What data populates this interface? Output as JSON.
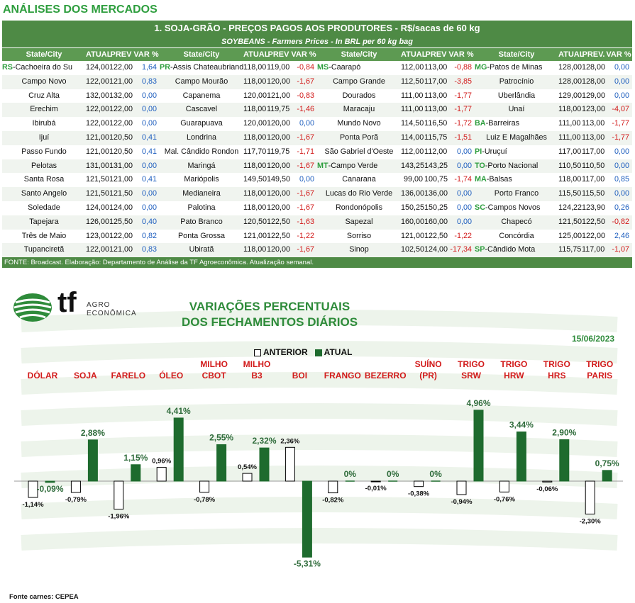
{
  "page_title": "ANÁLISES DOS MERCADOS",
  "table": {
    "title": "1. SOJA-GRÃO - PREÇOS PAGOS AOS PRODUTORES - R$/sacas de 60 kg",
    "subtitle": "SOYBEANS - Farmers Prices - In BRL per 60 kg bag",
    "groups": [
      {
        "headers": [
          "State/City",
          "ATUAL",
          "PREV",
          "VAR %"
        ],
        "rows": [
          {
            "state": "RS",
            "city": "Cachoeira do Su",
            "atual": "124,00",
            "prev": "122,00",
            "var": "1,64"
          },
          {
            "state": "",
            "city": "Campo Novo",
            "atual": "122,00",
            "prev": "121,00",
            "var": "0,83"
          },
          {
            "state": "",
            "city": "Cruz Alta",
            "atual": "132,00",
            "prev": "132,00",
            "var": "0,00"
          },
          {
            "state": "",
            "city": "Erechim",
            "atual": "122,00",
            "prev": "122,00",
            "var": "0,00"
          },
          {
            "state": "",
            "city": "Ibirubá",
            "atual": "122,00",
            "prev": "122,00",
            "var": "0,00"
          },
          {
            "state": "",
            "city": "Ijuí",
            "atual": "121,00",
            "prev": "120,50",
            "var": "0,41"
          },
          {
            "state": "",
            "city": "Passo Fundo",
            "atual": "121,00",
            "prev": "120,50",
            "var": "0,41"
          },
          {
            "state": "",
            "city": "Pelotas",
            "atual": "131,00",
            "prev": "131,00",
            "var": "0,00"
          },
          {
            "state": "",
            "city": "Santa Rosa",
            "atual": "121,50",
            "prev": "121,00",
            "var": "0,41"
          },
          {
            "state": "",
            "city": "Santo Angelo",
            "atual": "121,50",
            "prev": "121,50",
            "var": "0,00"
          },
          {
            "state": "",
            "city": "Soledade",
            "atual": "124,00",
            "prev": "124,00",
            "var": "0,00"
          },
          {
            "state": "",
            "city": "Tapejara",
            "atual": "126,00",
            "prev": "125,50",
            "var": "0,40"
          },
          {
            "state": "",
            "city": "Três de Maio",
            "atual": "123,00",
            "prev": "122,00",
            "var": "0,82"
          },
          {
            "state": "",
            "city": "Tupanciretã",
            "atual": "122,00",
            "prev": "121,00",
            "var": "0,83"
          }
        ]
      },
      {
        "headers": [
          "State/City",
          "ATUAL",
          "PREV",
          "VAR %"
        ],
        "rows": [
          {
            "state": "PR",
            "city": "Assis Chateaubriand",
            "atual": "118,00",
            "prev": "119,00",
            "var": "-0,84"
          },
          {
            "state": "",
            "city": "Campo Mourão",
            "atual": "118,00",
            "prev": "120,00",
            "var": "-1,67"
          },
          {
            "state": "",
            "city": "Capanema",
            "atual": "120,00",
            "prev": "121,00",
            "var": "-0,83"
          },
          {
            "state": "",
            "city": "Cascavel",
            "atual": "118,00",
            "prev": "119,75",
            "var": "-1,46"
          },
          {
            "state": "",
            "city": "Guarapuava",
            "atual": "120,00",
            "prev": "120,00",
            "var": "0,00"
          },
          {
            "state": "",
            "city": "Londrina",
            "atual": "118,00",
            "prev": "120,00",
            "var": "-1,67"
          },
          {
            "state": "",
            "city": "Mal. Cândido Rondon",
            "atual": "117,70",
            "prev": "119,75",
            "var": "-1,71"
          },
          {
            "state": "",
            "city": "Maringá",
            "atual": "118,00",
            "prev": "120,00",
            "var": "-1,67"
          },
          {
            "state": "",
            "city": "Mariópolis",
            "atual": "149,50",
            "prev": "149,50",
            "var": "0,00"
          },
          {
            "state": "",
            "city": "Medianeira",
            "atual": "118,00",
            "prev": "120,00",
            "var": "-1,67"
          },
          {
            "state": "",
            "city": "Palotina",
            "atual": "118,00",
            "prev": "120,00",
            "var": "-1,67"
          },
          {
            "state": "",
            "city": "Pato Branco",
            "atual": "120,50",
            "prev": "122,50",
            "var": "-1,63"
          },
          {
            "state": "",
            "city": "Ponta Grossa",
            "atual": "121,00",
            "prev": "122,50",
            "var": "-1,22"
          },
          {
            "state": "",
            "city": "Ubiratã",
            "atual": "118,00",
            "prev": "120,00",
            "var": "-1,67"
          }
        ]
      },
      {
        "headers": [
          "State/City",
          "ATUAL",
          "PREV",
          "VAR %"
        ],
        "rows": [
          {
            "state": "MS",
            "city": "Caarapó",
            "atual": "112,00",
            "prev": "113,00",
            "var": "-0,88"
          },
          {
            "state": "",
            "city": "Campo Grande",
            "atual": "112,50",
            "prev": "117,00",
            "var": "-3,85"
          },
          {
            "state": "",
            "city": "Dourados",
            "atual": "111,00",
            "prev": "113,00",
            "var": "-1,77"
          },
          {
            "state": "",
            "city": "Maracaju",
            "atual": "111,00",
            "prev": "113,00",
            "var": "-1,77"
          },
          {
            "state": "",
            "city": "Mundo Novo",
            "atual": "114,50",
            "prev": "116,50",
            "var": "-1,72"
          },
          {
            "state": "",
            "city": "Ponta Porã",
            "atual": "114,00",
            "prev": "115,75",
            "var": "-1,51"
          },
          {
            "state": "",
            "city": "São Gabriel d'Oeste",
            "atual": "112,00",
            "prev": "112,00",
            "var": "0,00"
          },
          {
            "state": "MT",
            "city": "Campo Verde",
            "atual": "143,25",
            "prev": "143,25",
            "var": "0,00"
          },
          {
            "state": "",
            "city": "Canarana",
            "atual": "99,00",
            "prev": "100,75",
            "var": "-1,74"
          },
          {
            "state": "",
            "city": "Lucas do Rio Verde",
            "atual": "136,00",
            "prev": "136,00",
            "var": "0,00"
          },
          {
            "state": "",
            "city": "Rondonópolis",
            "atual": "150,25",
            "prev": "150,25",
            "var": "0,00"
          },
          {
            "state": "",
            "city": "Sapezal",
            "atual": "160,00",
            "prev": "160,00",
            "var": "0,00"
          },
          {
            "state": "",
            "city": "Sorriso",
            "atual": "121,00",
            "prev": "122,50",
            "var": "-1,22"
          },
          {
            "state": "",
            "city": "Sinop",
            "atual": "102,50",
            "prev": "124,00",
            "var": "-17,34"
          }
        ]
      },
      {
        "headers": [
          "State/City",
          "ATUAL",
          "PREV.",
          "VAR %"
        ],
        "rows": [
          {
            "state": "MG",
            "city": "Patos de Minas",
            "atual": "128,00",
            "prev": "128,00",
            "var": "0,00"
          },
          {
            "state": "",
            "city": "Patrocínio",
            "atual": "128,00",
            "prev": "128,00",
            "var": "0,00"
          },
          {
            "state": "",
            "city": "Uberlândia",
            "atual": "129,00",
            "prev": "129,00",
            "var": "0,00"
          },
          {
            "state": "",
            "city": "Unaí",
            "atual": "118,00",
            "prev": "123,00",
            "var": "-4,07"
          },
          {
            "state": "BA",
            "city": "Barreiras",
            "atual": "111,00",
            "prev": "113,00",
            "var": "-1,77"
          },
          {
            "state": "",
            "city": "Luiz E Magalhães",
            "atual": "111,00",
            "prev": "113,00",
            "var": "-1,77"
          },
          {
            "state": "PI",
            "city": "Uruçuí",
            "atual": "117,00",
            "prev": "117,00",
            "var": "0,00"
          },
          {
            "state": "TO",
            "city": "Porto Nacional",
            "atual": "110,50",
            "prev": "110,50",
            "var": "0,00"
          },
          {
            "state": "MA",
            "city": "Balsas",
            "atual": "118,00",
            "prev": "117,00",
            "var": "0,85"
          },
          {
            "state": "",
            "city": "Porto Franco",
            "atual": "115,50",
            "prev": "115,50",
            "var": "0,00"
          },
          {
            "state": "SC",
            "city": "Campos Novos",
            "atual": "124,22",
            "prev": "123,90",
            "var": "0,26"
          },
          {
            "state": "",
            "city": "Chapecó",
            "atual": "121,50",
            "prev": "122,50",
            "var": "-0,82"
          },
          {
            "state": "",
            "city": "Concórdia",
            "atual": "125,00",
            "prev": "122,00",
            "var": "2,46"
          },
          {
            "state": "SP",
            "city": "Cândido Mota",
            "atual": "115,75",
            "prev": "117,00",
            "var": "-1,07"
          }
        ]
      }
    ],
    "source": "FONTE: Broadcast. Elaboração: Departamento de Análise da TF Agroeconômica. Atualização semanal."
  },
  "logo": {
    "mark": "tf",
    "word1": "AGRO",
    "word2": "ECONÔMICA"
  },
  "colors": {
    "green_dark": "#1e6b2e",
    "green_header": "#4e8a45",
    "title_green": "#2e8b3a",
    "label_red": "#d21b1b",
    "neg_red": "#d21b1b",
    "pos_blue": "#1f5fbf"
  },
  "chart_data": {
    "type": "bar",
    "title_line1": "VARIAÇÕES PERCENTUAIS",
    "title_line2": "DOS FECHAMENTOS DIÁRIOS",
    "date": "15/06/2023",
    "legend": [
      "ANTERIOR",
      "ATUAL"
    ],
    "categories": [
      "DÓLAR",
      "SOJA",
      "FARELO",
      "ÓLEO",
      "MILHO CBOT",
      "MILHO B3",
      "BOI",
      "FRANGO",
      "BEZERRO",
      "SUÍNO (PR)",
      "TRIGO SRW",
      "TRIGO HRW",
      "TRIGO HRS",
      "TRIGO PARIS"
    ],
    "series": [
      {
        "name": "ANTERIOR",
        "values": [
          -1.14,
          -0.79,
          -1.96,
          0.96,
          -0.78,
          0.54,
          2.36,
          -0.82,
          -0.01,
          -0.38,
          -0.94,
          -0.76,
          -0.06,
          -2.3
        ],
        "labels": [
          "-1,14%",
          "-0,79%",
          "-1,96%",
          "0,96%",
          "-0,78%",
          "0,54%",
          "2,36%",
          "-0,82%",
          "-0,01%",
          "-0,38%",
          "-0,94%",
          "-0,76%",
          "-0,06%",
          "-2,30%"
        ]
      },
      {
        "name": "ATUAL",
        "values": [
          -0.09,
          2.88,
          1.15,
          4.41,
          2.55,
          2.32,
          -5.31,
          0,
          0,
          0,
          4.96,
          3.44,
          2.9,
          0.75
        ],
        "labels": [
          "-0,09%",
          "2,88%",
          "1,15%",
          "4,41%",
          "2,55%",
          "2,32%",
          "-5,31%",
          "0%",
          "0%",
          "0%",
          "4,96%",
          "3,44%",
          "2,90%",
          "0,75%"
        ]
      }
    ],
    "ylim": [
      -5.6,
      5.2
    ]
  },
  "footer": "Fonte carnes: CEPEA"
}
